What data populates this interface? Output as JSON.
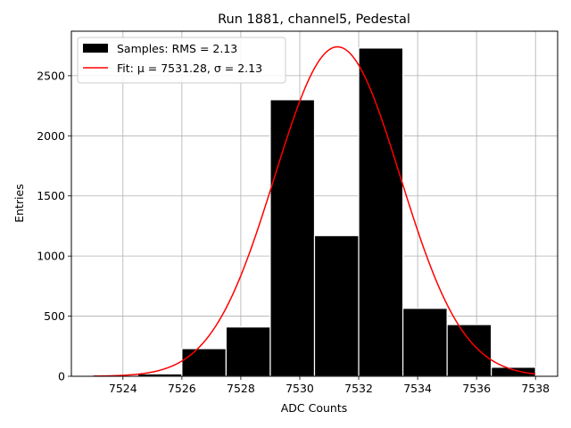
{
  "chart_data": {
    "type": "bar",
    "title": "Run 1881, channel5, Pedestal",
    "xlabel": "ADC Counts",
    "ylabel": "Entries",
    "xlim": [
      7522.25,
      7538.75
    ],
    "ylim": [
      0,
      2870
    ],
    "grid": true,
    "legend_position": "upper-left",
    "x_ticks": [
      7524,
      7526,
      7528,
      7530,
      7532,
      7534,
      7536,
      7538
    ],
    "y_ticks": [
      0,
      500,
      1000,
      1500,
      2000,
      2500
    ],
    "bins": {
      "edges": [
        7523.0,
        7524.5,
        7526.0,
        7527.5,
        7529.0,
        7530.5,
        7532.0,
        7533.5,
        7535.0,
        7536.5,
        7538.0
      ],
      "counts": [
        5,
        20,
        230,
        410,
        2300,
        1170,
        2730,
        565,
        430,
        75
      ]
    },
    "fit": {
      "mu": 7531.28,
      "sigma": 2.13,
      "amplitude": 2740,
      "x_range": [
        7523,
        7538
      ]
    },
    "series": [
      {
        "name": "Samples: RMS = 2.13",
        "kind": "histogram",
        "color": "#000000"
      },
      {
        "name": "Fit: μ = 7531.28, σ = 2.13",
        "kind": "line",
        "color": "#ff0000"
      }
    ]
  }
}
